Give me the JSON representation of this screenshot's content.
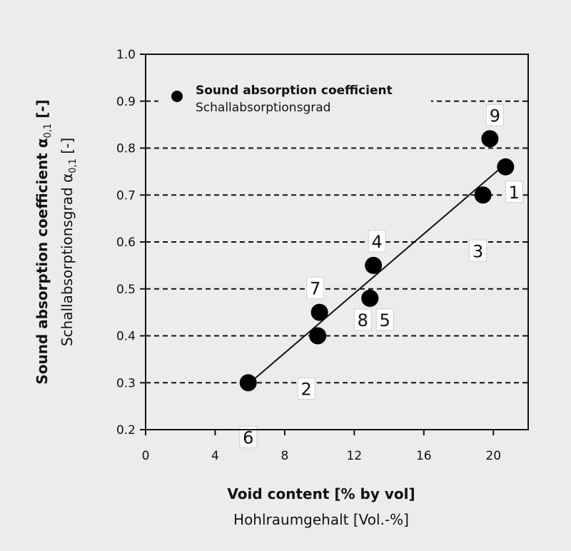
{
  "chart_data": {
    "type": "scatter",
    "x_label_main": "Void content [% by vol]",
    "x_label_sub": "Hohlraumgehalt [Vol.-%]",
    "y_label_main": "Sound absorption coefficient α",
    "y_label_main_subscript": "0,1",
    "y_label_main_suffix": " [-]",
    "y_label_sub": "Schallabsorptionsgrad α",
    "y_label_sub_subscript": "0,1",
    "y_label_sub_suffix": " [-]",
    "xlim": [
      0,
      22
    ],
    "ylim": [
      0.2,
      1.0
    ],
    "x_ticks": [
      "0",
      "4",
      "8",
      "12",
      "16",
      "20"
    ],
    "x_tick_values": [
      0,
      4,
      8,
      12,
      16,
      20
    ],
    "y_ticks": [
      "0.2",
      "0.3",
      "0.4",
      "0.5",
      "0.6",
      "0.7",
      "0.8",
      "0.9",
      "1.0"
    ],
    "y_tick_values": [
      0.2,
      0.3,
      0.4,
      0.5,
      0.6,
      0.7,
      0.8,
      0.9,
      1.0
    ],
    "grid": "horizontal dashed",
    "legend": {
      "placement": "top-left",
      "main": "Sound absorption coefficient",
      "sub": "Schallabsorptionsgrad"
    },
    "series": [
      {
        "points": [
          {
            "label": "1",
            "x": 20.7,
            "y": 0.76
          },
          {
            "label": "2",
            "x": 9.9,
            "y": 0.4
          },
          {
            "label": "3",
            "x": 19.4,
            "y": 0.7
          },
          {
            "label": "4",
            "x": 13.1,
            "y": 0.55
          },
          {
            "label": "5",
            "x": 12.9,
            "y": 0.48
          },
          {
            "label": "6",
            "x": 5.9,
            "y": 0.3
          },
          {
            "label": "7",
            "x": 10.0,
            "y": 0.45
          },
          {
            "label": "8",
            "x": 12.9,
            "y": 0.48
          },
          {
            "label": "9",
            "x": 19.8,
            "y": 0.82
          }
        ]
      }
    ],
    "fit_line": {
      "x1": 6.0,
      "y1": 0.3,
      "x2": 20.5,
      "y2": 0.76
    }
  }
}
